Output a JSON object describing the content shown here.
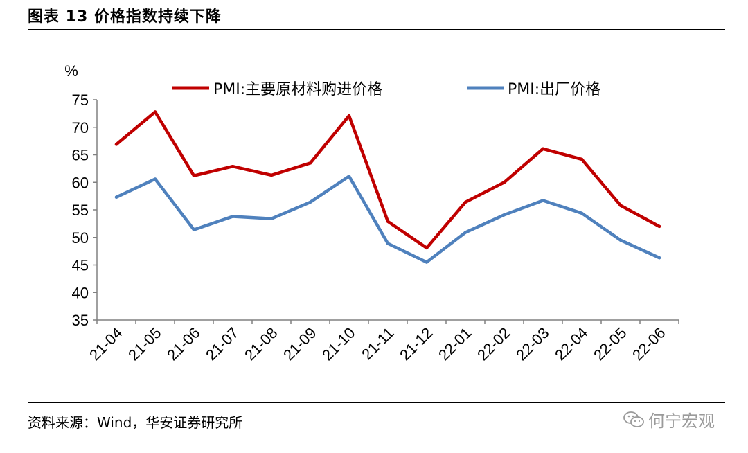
{
  "title": "图表  13  价格指数持续下降",
  "source": "资料来源：Wind，华安证券研究所",
  "watermark": "何宁宏观",
  "watermark_icon": "wechat-icon",
  "colors": {
    "series1": "#c00000",
    "series2": "#4f81bd"
  },
  "chart_data": {
    "type": "line",
    "unit_label": "%",
    "x": [
      "21-04",
      "21-05",
      "21-06",
      "21-07",
      "21-08",
      "21-09",
      "21-10",
      "21-11",
      "21-12",
      "22-01",
      "22-02",
      "22-03",
      "22-04",
      "22-05",
      "22-06"
    ],
    "ylim": [
      35,
      75
    ],
    "yticks": [
      35,
      40,
      45,
      50,
      55,
      60,
      65,
      70,
      75
    ],
    "grid": false,
    "legend_placement": "top",
    "series": [
      {
        "name": "PMI:主要原材料购进价格",
        "values": [
          66.9,
          72.8,
          61.2,
          62.9,
          61.3,
          63.5,
          72.1,
          52.9,
          48.1,
          56.4,
          60.0,
          66.1,
          64.2,
          55.8,
          52.0
        ]
      },
      {
        "name": "PMI:出厂价格",
        "values": [
          57.3,
          60.6,
          51.4,
          53.8,
          53.4,
          56.4,
          61.1,
          48.9,
          45.5,
          50.9,
          54.1,
          56.7,
          54.4,
          49.5,
          46.3
        ]
      }
    ]
  }
}
